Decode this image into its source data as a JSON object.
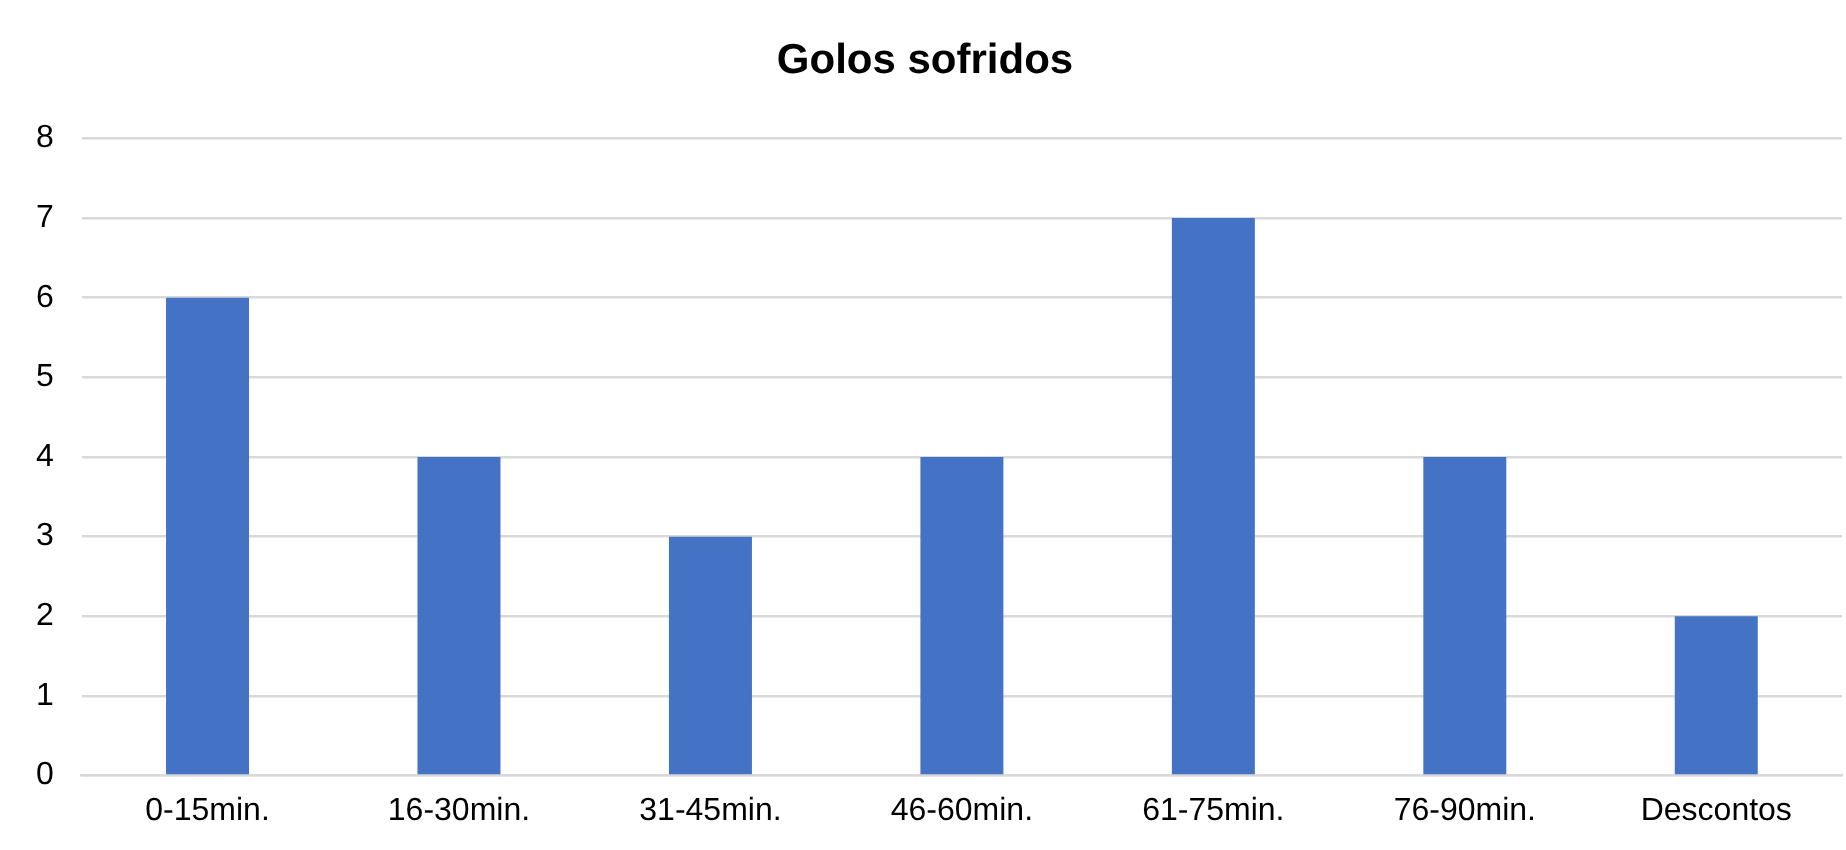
{
  "chart_data": {
    "type": "bar",
    "title": "Golos sofridos",
    "categories": [
      "0-15min.",
      "16-30min.",
      "31-45min.",
      "46-60min.",
      "61-75min.",
      "76-90min.",
      "Descontos"
    ],
    "values": [
      6,
      4,
      3,
      4,
      7,
      4,
      2
    ],
    "color": "#4472c4",
    "ylim": [
      0,
      8
    ],
    "yticks": [
      0,
      1,
      2,
      3,
      4,
      5,
      6,
      7,
      8
    ],
    "grid": "y",
    "legend": false
  }
}
